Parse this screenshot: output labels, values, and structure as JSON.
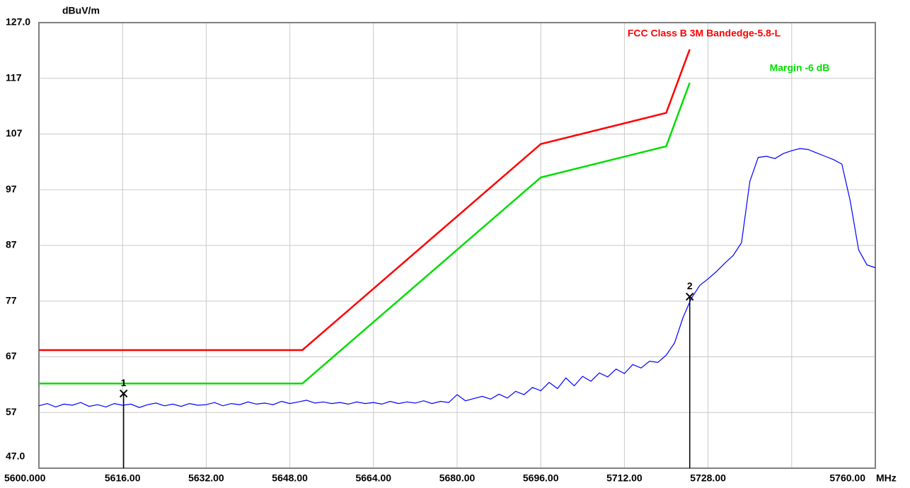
{
  "chart_data": {
    "type": "line",
    "y_unit": "dBuV/m",
    "x_unit": "MHz",
    "xlim": [
      5600,
      5760
    ],
    "ylim": [
      47,
      127
    ],
    "xticks": [
      {
        "value": 5600,
        "label": "5600.000"
      },
      {
        "value": 5616,
        "label": "5616.00"
      },
      {
        "value": 5632,
        "label": "5632.00"
      },
      {
        "value": 5648,
        "label": "5648.00"
      },
      {
        "value": 5664,
        "label": "5664.00"
      },
      {
        "value": 5680,
        "label": "5680.00"
      },
      {
        "value": 5696,
        "label": "5696.00"
      },
      {
        "value": 5712,
        "label": "5712.00"
      },
      {
        "value": 5728,
        "label": "5728.00"
      },
      {
        "value": 5744,
        "label": null
      },
      {
        "value": 5760,
        "label": "5760.00"
      }
    ],
    "yticks": [
      {
        "value": 127,
        "label": "127.0"
      },
      117,
      107,
      97,
      87,
      77,
      67,
      57,
      {
        "value": 47,
        "label": "47.0"
      }
    ],
    "grid": true,
    "series": [
      {
        "name": "FCC Class B 3M Bandedge-5.8-L",
        "color": "#ff0000",
        "x": [
          5600,
          5650.4,
          5696,
          5720,
          5724.5
        ],
        "values": [
          68.2,
          68.2,
          105.2,
          110.8,
          122.2
        ]
      },
      {
        "name": "Margin -6 dB",
        "color": "#00dd00",
        "x": [
          5600,
          5650.4,
          5696,
          5720,
          5724.5
        ],
        "values": [
          62.2,
          62.2,
          99.2,
          104.8,
          116.2
        ]
      },
      {
        "color": "#0000ff",
        "x": [
          5600.0,
          5601.6,
          5603.2,
          5604.8,
          5606.4,
          5608.0,
          5609.6,
          5611.2,
          5612.8,
          5614.4,
          5616.0,
          5617.6,
          5619.2,
          5620.8,
          5622.4,
          5624.0,
          5625.6,
          5627.2,
          5628.8,
          5630.4,
          5632.0,
          5633.6,
          5635.2,
          5636.8,
          5638.4,
          5640.0,
          5641.6,
          5643.2,
          5644.8,
          5646.4,
          5648.0,
          5649.6,
          5651.2,
          5652.8,
          5654.4,
          5656.0,
          5657.6,
          5659.2,
          5660.8,
          5662.4,
          5664.0,
          5665.6,
          5667.2,
          5668.8,
          5670.4,
          5672.0,
          5673.6,
          5675.2,
          5676.8,
          5678.4,
          5680.0,
          5681.6,
          5683.2,
          5684.8,
          5686.4,
          5688.0,
          5689.6,
          5691.2,
          5692.8,
          5694.4,
          5696.0,
          5697.6,
          5699.2,
          5700.8,
          5702.4,
          5704.0,
          5705.6,
          5707.2,
          5708.8,
          5710.4,
          5712.0,
          5713.6,
          5715.2,
          5716.8,
          5718.4,
          5720.0,
          5721.6,
          5723.2,
          5724.8,
          5726.4,
          5728.0,
          5729.6,
          5731.2,
          5732.8,
          5734.4,
          5736.0,
          5737.6,
          5739.2,
          5740.8,
          5742.4,
          5744.0,
          5745.6,
          5747.2,
          5748.8,
          5750.4,
          5752.0,
          5753.6,
          5755.2,
          5756.8,
          5758.4,
          5760.0
        ],
        "values": [
          58.2,
          58.6,
          58.0,
          58.5,
          58.3,
          58.8,
          58.1,
          58.4,
          58.0,
          58.6,
          58.3,
          58.5,
          57.9,
          58.4,
          58.7,
          58.2,
          58.5,
          58.1,
          58.6,
          58.3,
          58.4,
          58.8,
          58.2,
          58.6,
          58.4,
          58.9,
          58.5,
          58.7,
          58.4,
          59.0,
          58.6,
          58.9,
          59.2,
          58.7,
          58.9,
          58.6,
          58.8,
          58.5,
          58.9,
          58.6,
          58.8,
          58.5,
          59.0,
          58.6,
          58.9,
          58.7,
          59.1,
          58.6,
          59.0,
          58.8,
          60.2,
          59.1,
          59.5,
          59.9,
          59.4,
          60.3,
          59.6,
          60.8,
          60.2,
          61.5,
          60.9,
          62.4,
          61.3,
          63.2,
          61.8,
          63.5,
          62.6,
          64.1,
          63.4,
          64.8,
          64.0,
          65.6,
          65.0,
          66.2,
          66.0,
          67.3,
          69.5,
          74.0,
          77.5,
          79.8,
          81.0,
          82.3,
          83.8,
          85.2,
          87.5,
          98.5,
          102.8,
          103.0,
          102.6,
          103.5,
          104.0,
          104.4,
          104.2,
          103.6,
          103.0,
          102.4,
          101.6,
          95.0,
          86.2,
          83.5,
          83.0
        ]
      }
    ],
    "markers": [
      {
        "label": "1",
        "x": 5616.2,
        "y": 60.4
      },
      {
        "label": "2",
        "x": 5724.5,
        "y": 77.8
      }
    ]
  }
}
